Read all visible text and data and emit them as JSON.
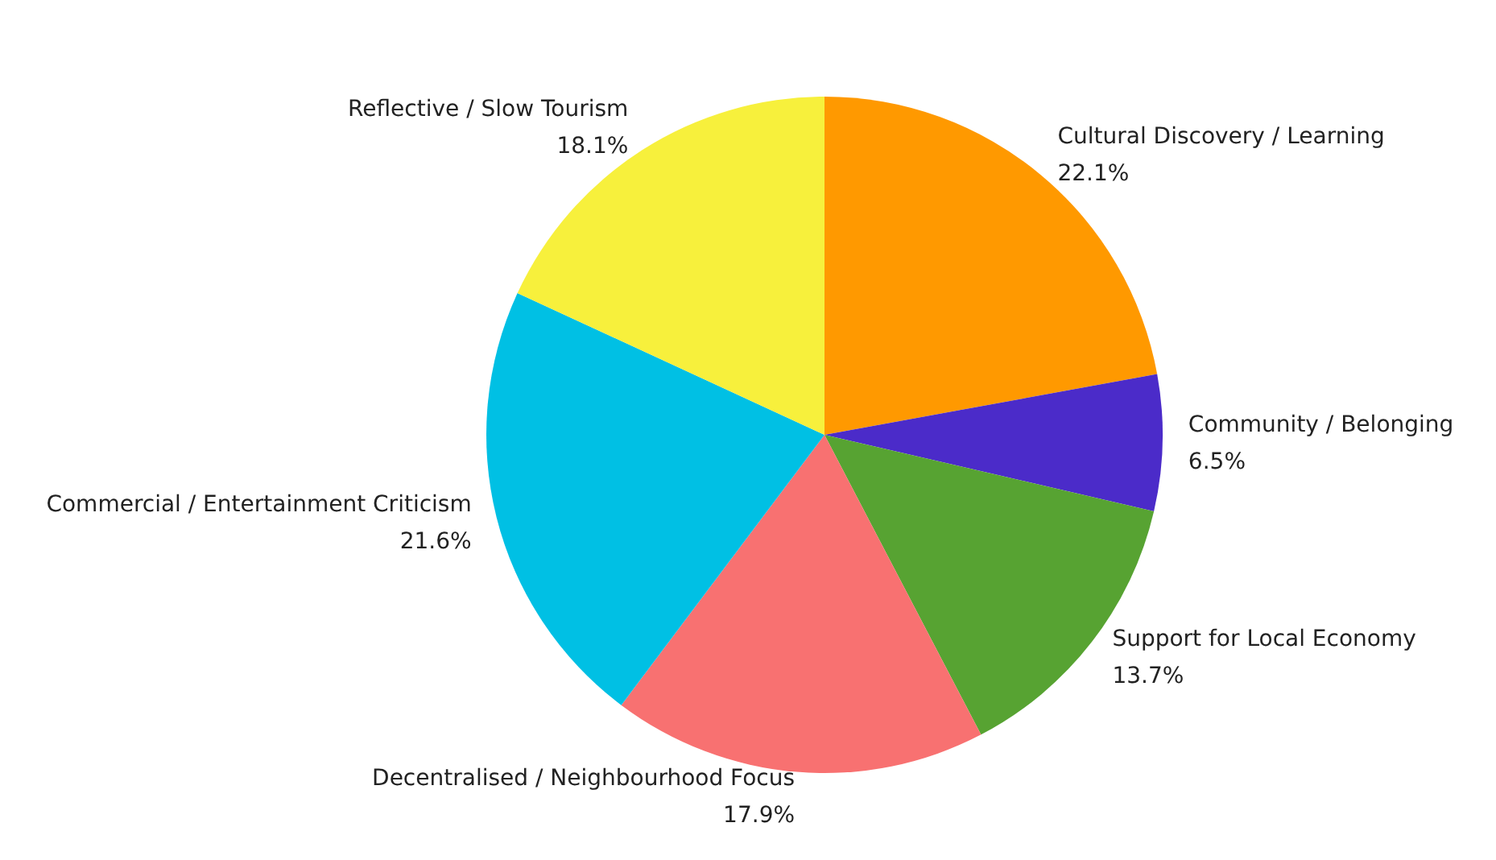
{
  "chart_data": {
    "type": "pie",
    "categories": [
      "Cultural Discovery / Learning",
      "Community / Belonging",
      "Support for Local Economy",
      "Decentralised / Neighbourhood Focus",
      "Commercial / Entertainment Criticism",
      "Reflective / Slow Tourism"
    ],
    "values": [
      22.1,
      6.5,
      13.7,
      17.9,
      21.6,
      18.1
    ],
    "colors": [
      "#ff9900",
      "#4b2bc9",
      "#57a332",
      "#f87171",
      "#00c0e4",
      "#f7f03c"
    ],
    "value_labels": [
      "22.1%",
      "6.5%",
      "13.7%",
      "17.9%",
      "21.6%",
      "18.1%"
    ],
    "legend": false
  }
}
